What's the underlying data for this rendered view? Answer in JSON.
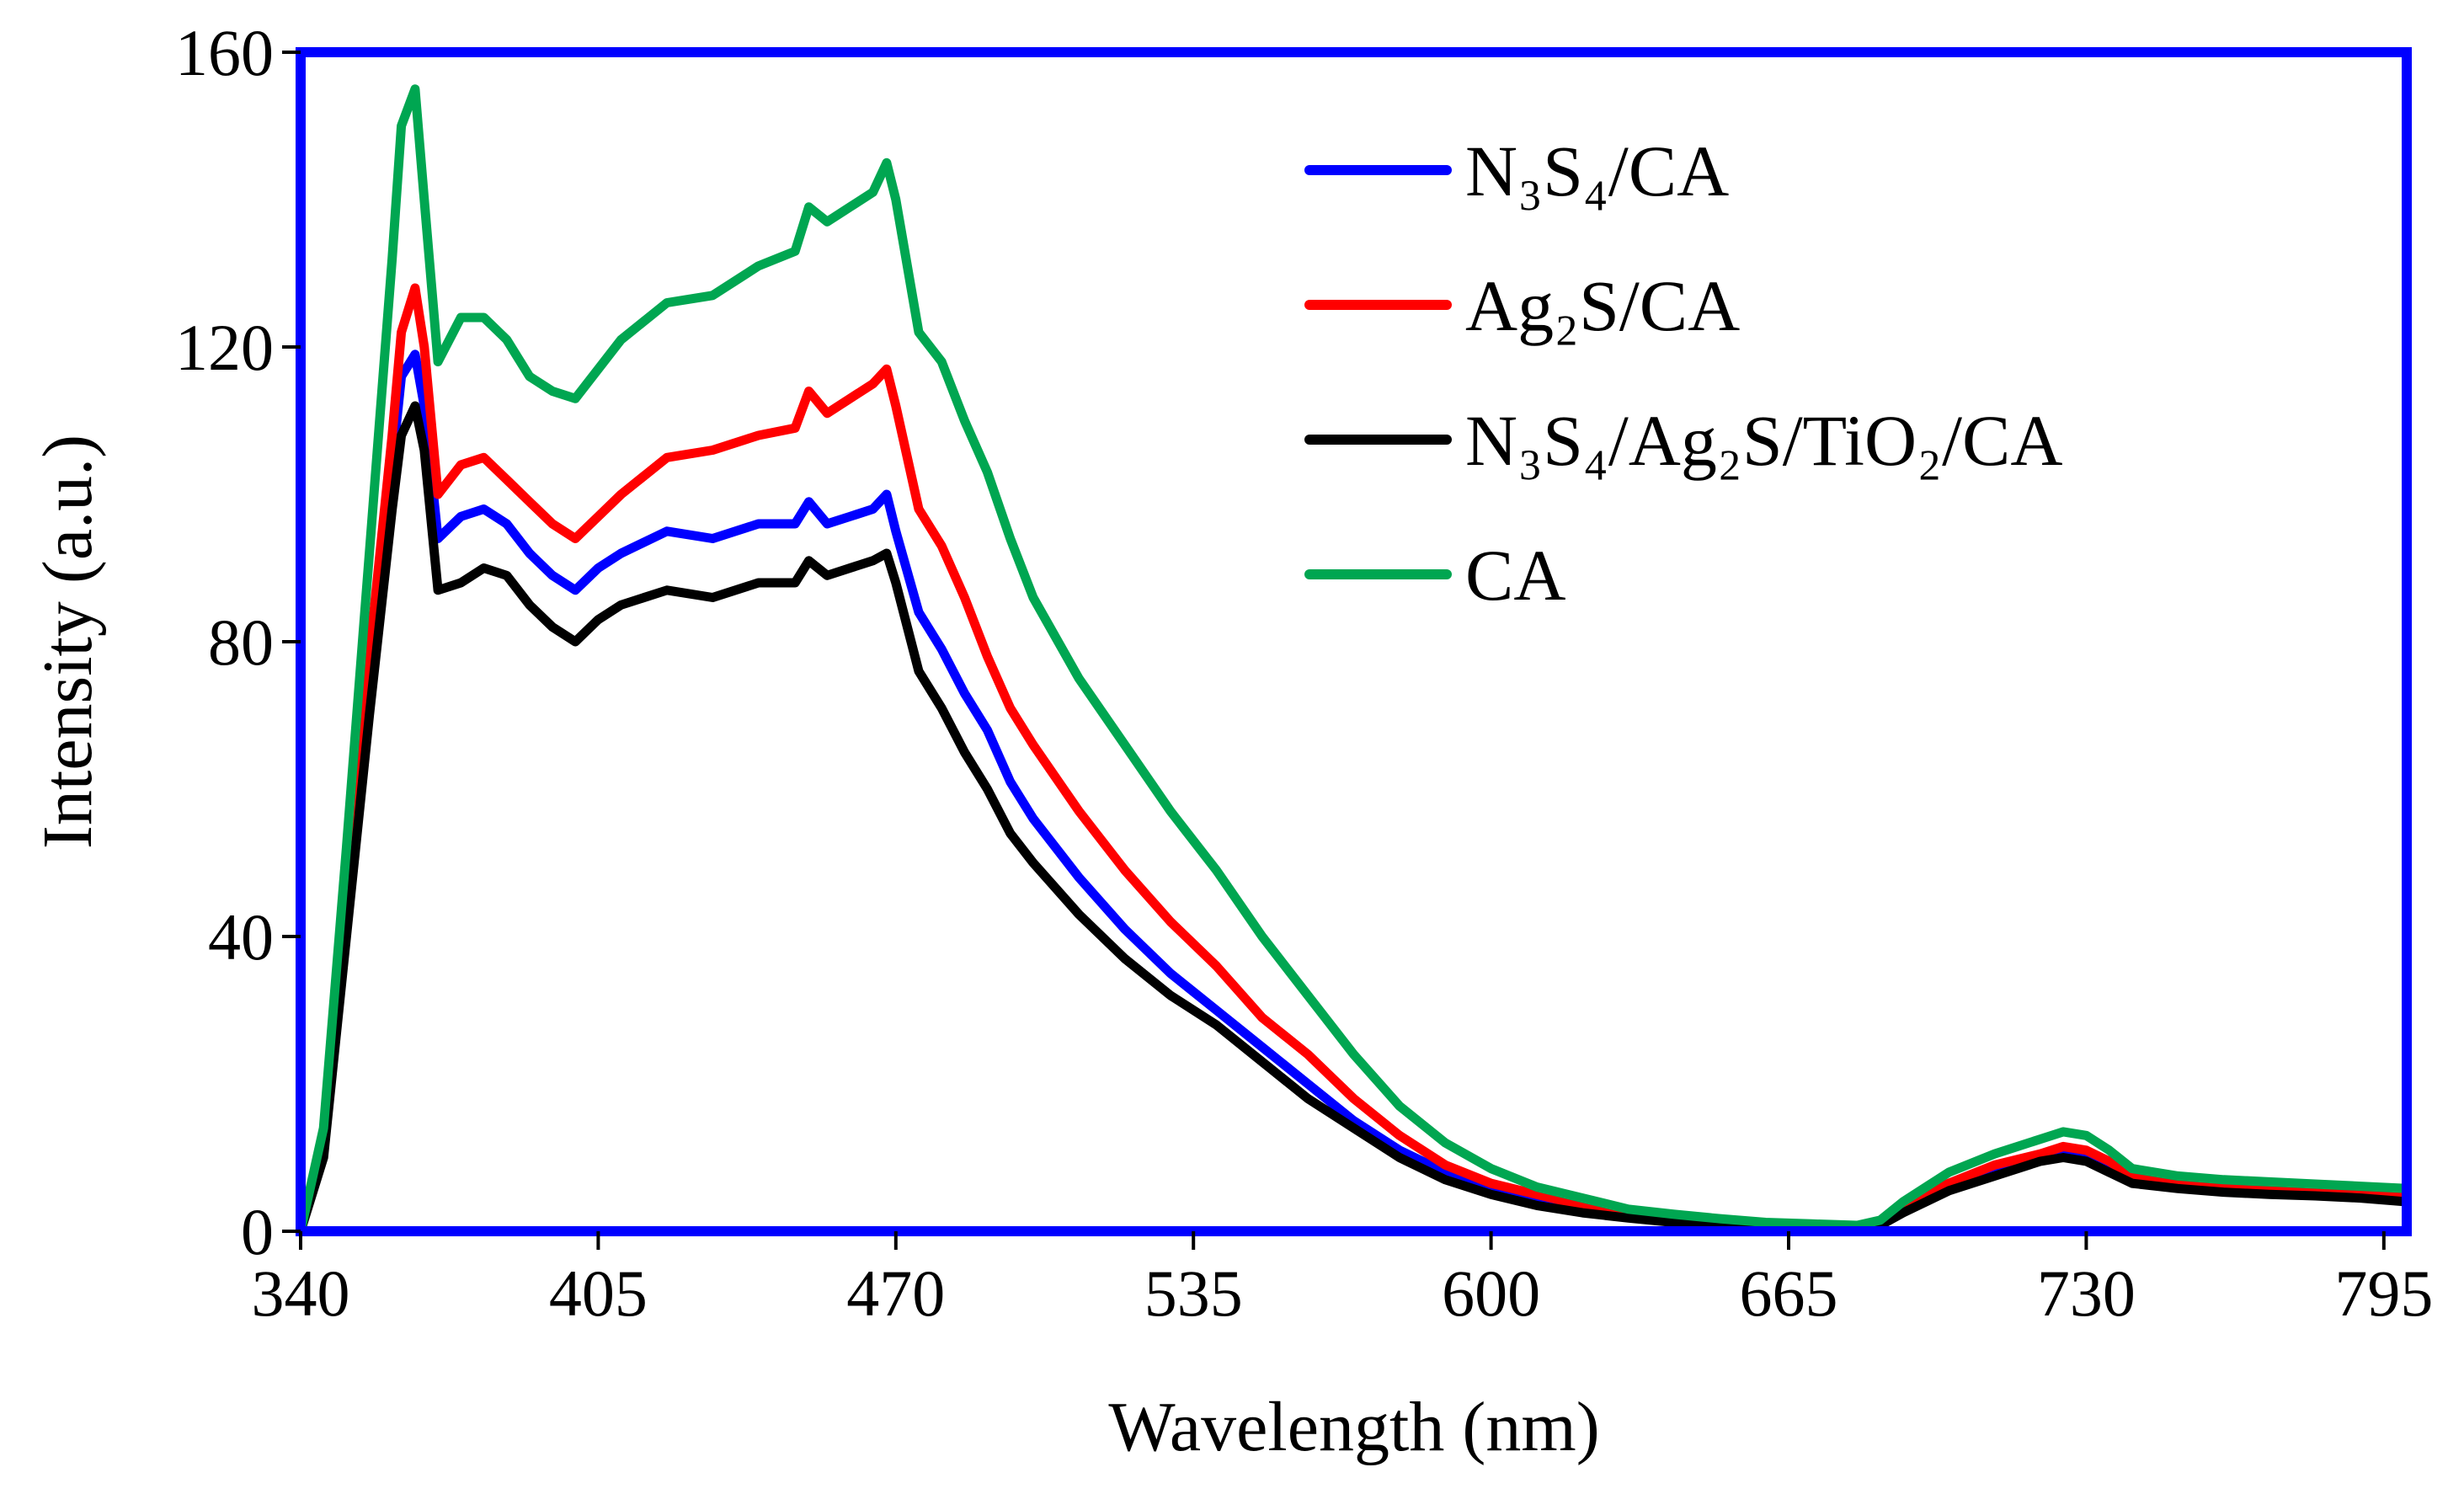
{
  "chart_data": {
    "type": "line",
    "title": "",
    "xlabel": "Wavelength (nm)",
    "ylabel": "Intensity (a.u.)",
    "xlim": [
      340,
      800
    ],
    "ylim": [
      0,
      160
    ],
    "xticks": [
      "340",
      "405",
      "470",
      "535",
      "600",
      "665",
      "730",
      "795"
    ],
    "yticks": [
      "0",
      "40",
      "80",
      "120",
      "160"
    ],
    "grid": false,
    "legend_position": "top-right",
    "x": [
      340,
      345,
      350,
      355,
      360,
      362,
      365,
      367,
      370,
      375,
      380,
      385,
      390,
      395,
      400,
      405,
      410,
      420,
      430,
      440,
      448,
      451,
      455,
      460,
      465,
      468,
      470,
      475,
      480,
      485,
      490,
      495,
      500,
      510,
      520,
      530,
      540,
      550,
      560,
      570,
      580,
      590,
      600,
      610,
      620,
      630,
      640,
      650,
      660,
      670,
      680,
      685,
      690,
      700,
      710,
      720,
      725,
      730,
      735,
      740,
      750,
      760,
      770,
      780,
      790,
      800
    ],
    "series": [
      {
        "name": "N₃S₄/CA",
        "color": "#0000ff",
        "values": [
          0,
          12,
          45,
          75,
          104,
          116,
          119,
          112,
          94,
          97,
          98,
          96,
          92,
          89,
          87,
          90,
          92,
          95,
          94,
          96,
          96,
          99,
          96,
          97,
          98,
          100,
          95,
          84,
          79,
          73,
          68,
          61,
          56,
          48,
          41,
          35,
          30,
          25,
          20,
          15,
          11,
          8,
          5.5,
          4,
          3,
          2,
          1.5,
          1,
          0.8,
          0.6,
          0.5,
          1,
          3,
          6,
          8,
          10,
          10.5,
          10,
          8.5,
          7,
          6,
          5.5,
          5.2,
          5,
          4.8,
          4.5
        ]
      },
      {
        "name": "Ag₂S/CA",
        "color": "#ff0000",
        "values": [
          0,
          12,
          45,
          78,
          108,
          122,
          128,
          120,
          100,
          104,
          105,
          102,
          99,
          96,
          94,
          97,
          100,
          105,
          106,
          108,
          109,
          114,
          111,
          113,
          115,
          117,
          112,
          98,
          93,
          86,
          78,
          71,
          66,
          57,
          49,
          42,
          36,
          29,
          24,
          18,
          13,
          9,
          6.5,
          5,
          3.5,
          2.5,
          1.8,
          1.2,
          0.9,
          0.7,
          0.6,
          1.2,
          3.5,
          6.5,
          9,
          10.5,
          11.5,
          11,
          9.5,
          7.5,
          6.5,
          6,
          5.8,
          5.6,
          5.3,
          5
        ]
      },
      {
        "name": "N₃S₄/Ag₂S/TiO₂/CA",
        "color": "#000000",
        "values": [
          0,
          10,
          40,
          70,
          98,
          108,
          112,
          106,
          87,
          88,
          90,
          89,
          85,
          82,
          80,
          83,
          85,
          87,
          86,
          88,
          88,
          91,
          89,
          90,
          91,
          92,
          88,
          76,
          71,
          65,
          60,
          54,
          50,
          43,
          37,
          32,
          28,
          23,
          18,
          14,
          10,
          7,
          5,
          3.5,
          2.5,
          1.8,
          1.2,
          0.8,
          0.6,
          0.5,
          0.4,
          0.8,
          2.5,
          5.5,
          7.5,
          9.5,
          10,
          9.5,
          8,
          6.5,
          5.8,
          5.3,
          5,
          4.8,
          4.5,
          4
        ]
      },
      {
        "name": "CA",
        "color": "#00a651",
        "values": [
          0,
          14,
          52,
          92,
          132,
          150,
          155,
          140,
          118,
          124,
          124,
          121,
          116,
          114,
          113,
          117,
          121,
          126,
          127,
          131,
          133,
          139,
          137,
          139,
          141,
          145,
          140,
          122,
          118,
          110,
          103,
          94,
          86,
          75,
          66,
          57,
          49,
          40,
          32,
          24,
          17,
          12,
          8.5,
          6,
          4.5,
          3,
          2.3,
          1.7,
          1.2,
          1,
          0.8,
          1.5,
          4,
          8,
          10.5,
          12.5,
          13.5,
          13,
          11,
          8.5,
          7.5,
          7,
          6.7,
          6.4,
          6.1,
          5.8
        ]
      }
    ]
  }
}
